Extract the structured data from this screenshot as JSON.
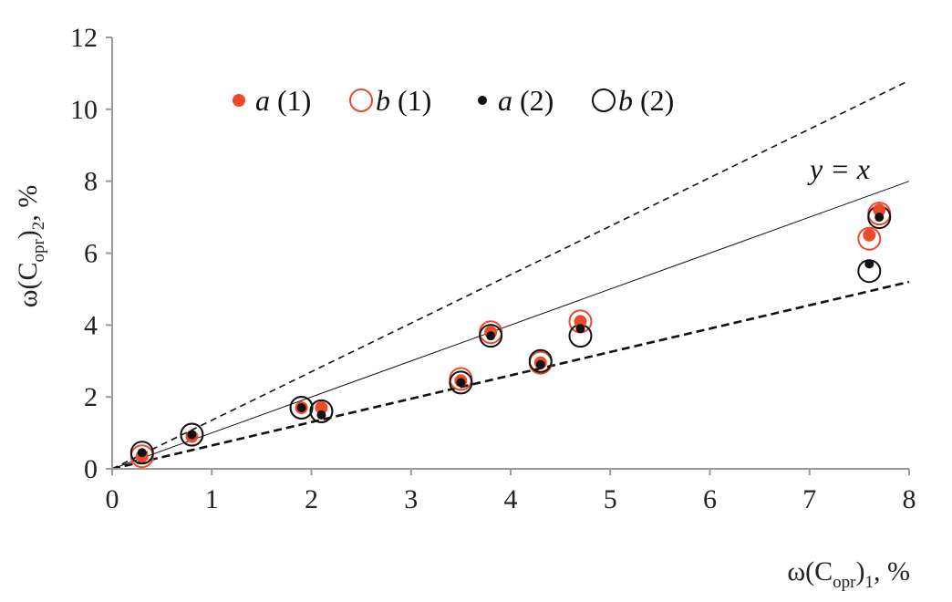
{
  "chart_data": {
    "type": "scatter",
    "x_axis": {
      "label_main": "ω(C",
      "label_sub": "opr",
      "label_close": ")",
      "label_index": "1",
      "label_unit": ", %",
      "range": [
        0,
        8
      ],
      "ticks": [
        "0",
        "1",
        "2",
        "3",
        "4",
        "5",
        "6",
        "7",
        "8"
      ]
    },
    "y_axis": {
      "label_main": "ω(C",
      "label_sub": "opr",
      "label_close": ")",
      "label_index": "2",
      "label_unit": ", %",
      "range": [
        0,
        12
      ],
      "ticks": [
        "0",
        "2",
        "4",
        "6",
        "8",
        "10",
        "12"
      ]
    },
    "legend": [
      {
        "symbol": "filled",
        "color": "#ee4a2a",
        "letter": "a",
        "num": "(1)"
      },
      {
        "symbol": "open",
        "color": "#ee4a2a",
        "letter": "b",
        "num": "(1)"
      },
      {
        "symbol": "filled",
        "color": "#111111",
        "letter": "a",
        "num": "(2)"
      },
      {
        "symbol": "open",
        "color": "#111111",
        "letter": "b",
        "num": "(2)"
      }
    ],
    "lines": [
      {
        "kind": "identity",
        "annotation": "y = x",
        "x": [
          0,
          8
        ],
        "y": [
          0,
          8
        ]
      },
      {
        "kind": "upper-dashed",
        "x": [
          0,
          8
        ],
        "y": [
          0,
          10.8
        ]
      },
      {
        "kind": "lower-dashed",
        "x": [
          0,
          8
        ],
        "y": [
          0,
          5.2
        ]
      }
    ],
    "series": [
      {
        "id": "a1",
        "marker": "filled",
        "color": "#ee4a2a",
        "x": [
          0.3,
          0.8,
          1.9,
          2.1,
          3.5,
          3.8,
          4.3,
          4.7,
          7.6,
          7.7
        ],
        "y": [
          0.35,
          0.9,
          1.7,
          1.7,
          2.45,
          3.8,
          2.95,
          4.1,
          6.5,
          7.2
        ]
      },
      {
        "id": "b1",
        "marker": "open",
        "color": "#ee4a2a",
        "x": [
          0.3,
          0.8,
          1.9,
          2.1,
          3.5,
          3.8,
          4.3,
          4.7,
          7.6,
          7.7
        ],
        "y": [
          0.35,
          0.95,
          1.7,
          1.6,
          2.5,
          3.8,
          2.95,
          4.1,
          6.4,
          7.1
        ]
      },
      {
        "id": "a2",
        "marker": "filled",
        "color": "#111111",
        "x": [
          0.3,
          0.8,
          1.9,
          2.1,
          3.5,
          3.8,
          4.3,
          4.7,
          7.6,
          7.7
        ],
        "y": [
          0.45,
          0.95,
          1.7,
          1.5,
          2.4,
          3.7,
          2.9,
          3.9,
          5.7,
          7.0
        ]
      },
      {
        "id": "b2",
        "marker": "open",
        "color": "#111111",
        "x": [
          0.3,
          0.8,
          1.9,
          2.1,
          3.5,
          3.8,
          4.3,
          4.7,
          7.6,
          7.7
        ],
        "y": [
          0.45,
          0.95,
          1.7,
          1.6,
          2.4,
          3.7,
          3.0,
          3.7,
          5.5,
          7.0
        ]
      }
    ],
    "grid": false
  }
}
